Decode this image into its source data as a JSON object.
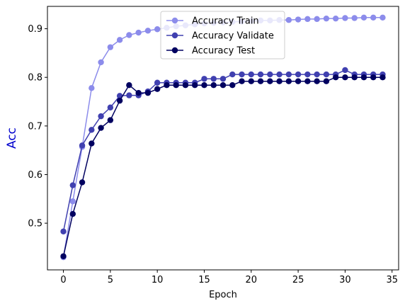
{
  "chart_data": {
    "type": "line",
    "xlabel": "Epoch",
    "ylabel": "Acc",
    "ylabel_color": "#0000cd",
    "xlim": [
      -1.7,
      35.7
    ],
    "ylim": [
      0.404,
      0.946
    ],
    "xticks": [
      0,
      5,
      10,
      15,
      20,
      25,
      30,
      35
    ],
    "yticks": [
      0.5,
      0.6,
      0.7,
      0.8,
      0.9
    ],
    "xtick_labels": [
      "0",
      "5",
      "10",
      "15",
      "20",
      "25",
      "30",
      "35"
    ],
    "ytick_labels": [
      "0.5",
      "0.6",
      "0.7",
      "0.8",
      "0.9"
    ],
    "grid": false,
    "legend_position": "top-center",
    "x": [
      0,
      1,
      2,
      3,
      4,
      5,
      6,
      7,
      8,
      9,
      10,
      11,
      12,
      13,
      14,
      15,
      16,
      17,
      18,
      19,
      20,
      21,
      22,
      23,
      24,
      25,
      26,
      27,
      28,
      29,
      30,
      31,
      32,
      33,
      34
    ],
    "series": [
      {
        "name": "Accuracy Train",
        "color": "#8c8ceb",
        "values": [
          0.43,
          0.545,
          0.657,
          0.778,
          0.831,
          0.862,
          0.877,
          0.887,
          0.892,
          0.896,
          0.899,
          0.902,
          0.905,
          0.907,
          0.909,
          0.911,
          0.912,
          0.913,
          0.914,
          0.915,
          0.916,
          0.917,
          0.917,
          0.918,
          0.918,
          0.919,
          0.92,
          0.92,
          0.921,
          0.921,
          0.922,
          0.922,
          0.923,
          0.923,
          0.923
        ]
      },
      {
        "name": "Accuracy Validate",
        "color": "#4040b0",
        "values": [
          0.483,
          0.578,
          0.66,
          0.692,
          0.72,
          0.738,
          0.762,
          0.763,
          0.763,
          0.771,
          0.789,
          0.789,
          0.789,
          0.789,
          0.789,
          0.797,
          0.797,
          0.797,
          0.806,
          0.806,
          0.806,
          0.806,
          0.806,
          0.806,
          0.806,
          0.806,
          0.806,
          0.806,
          0.806,
          0.806,
          0.815,
          0.806,
          0.806,
          0.806,
          0.806
        ]
      },
      {
        "name": "Accuracy Test",
        "color": "#000060",
        "values": [
          0.432,
          0.519,
          0.584,
          0.664,
          0.696,
          0.712,
          0.752,
          0.784,
          0.768,
          0.768,
          0.776,
          0.784,
          0.784,
          0.784,
          0.784,
          0.784,
          0.784,
          0.784,
          0.784,
          0.792,
          0.792,
          0.792,
          0.792,
          0.792,
          0.792,
          0.792,
          0.792,
          0.792,
          0.792,
          0.8,
          0.8,
          0.8,
          0.8,
          0.8,
          0.8
        ]
      }
    ]
  }
}
